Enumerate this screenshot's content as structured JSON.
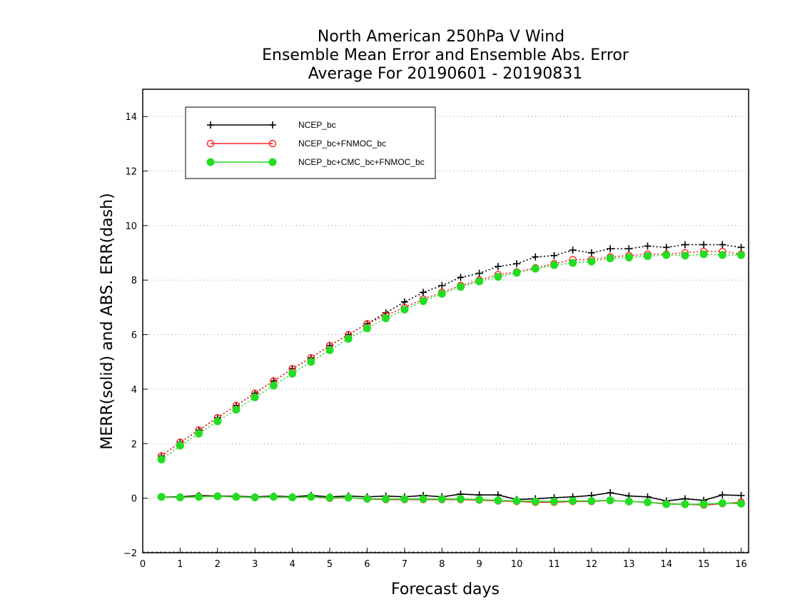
{
  "chart_data": {
    "type": "line",
    "title_lines": [
      "North American 250hPa V Wind",
      "Ensemble Mean Error and Ensemble Abs. Error",
      "Average For 20190601 - 20190831"
    ],
    "xlabel": "Forecast days",
    "ylabel": "MERR(solid) and ABS. ERR(dash)",
    "xlim": [
      0,
      16.2
    ],
    "ylim": [
      -2,
      15
    ],
    "xticks": [
      "0",
      "1",
      "2",
      "3",
      "4",
      "5",
      "6",
      "7",
      "8",
      "9",
      "10",
      "11",
      "12",
      "13",
      "14",
      "15",
      "16"
    ],
    "yticks": [
      "−2",
      "0",
      "2",
      "4",
      "6",
      "8",
      "10",
      "12",
      "14"
    ],
    "grid": "horizontal dotted",
    "legend_position": "top-left",
    "x": [
      0.5,
      1,
      1.5,
      2,
      2.5,
      3,
      3.5,
      4,
      4.5,
      5,
      5.5,
      6,
      6.5,
      7,
      7.5,
      8,
      8.5,
      9,
      9.5,
      10,
      10.5,
      11,
      11.5,
      12,
      12.5,
      13,
      13.5,
      14,
      14.5,
      15,
      15.5,
      16
    ],
    "series": [
      {
        "name": "NCEP_bc",
        "color": "#000000",
        "marker": "plus",
        "merr": [
          0.05,
          0.05,
          0.1,
          0.08,
          0.07,
          0.05,
          0.08,
          0.05,
          0.1,
          0.05,
          0.08,
          0.05,
          0.08,
          0.05,
          0.1,
          0.05,
          0.15,
          0.12,
          0.12,
          -0.05,
          -0.02,
          0.02,
          0.05,
          0.1,
          0.2,
          0.08,
          0.05,
          -0.1,
          -0.02,
          -0.08,
          0.12,
          0.1
        ],
        "abs_err": [
          1.55,
          2.05,
          2.5,
          2.95,
          3.4,
          3.85,
          4.3,
          4.75,
          5.15,
          5.6,
          6.0,
          6.4,
          6.8,
          7.2,
          7.55,
          7.8,
          8.1,
          8.25,
          8.5,
          8.6,
          8.85,
          8.9,
          9.1,
          9.0,
          9.15,
          9.15,
          9.25,
          9.2,
          9.3,
          9.3,
          9.3,
          9.2
        ]
      },
      {
        "name": "NCEP_bc+FNMOC_bc",
        "color": "#ff2020",
        "marker": "open-circle",
        "merr": [
          0.05,
          0.03,
          0.07,
          0.07,
          0.05,
          0.03,
          0.05,
          0.03,
          0.05,
          0.0,
          0.02,
          -0.03,
          -0.05,
          -0.05,
          -0.05,
          -0.05,
          -0.05,
          -0.07,
          -0.1,
          -0.12,
          -0.15,
          -0.15,
          -0.12,
          -0.12,
          -0.08,
          -0.12,
          -0.15,
          -0.2,
          -0.22,
          -0.25,
          -0.2,
          -0.15
        ],
        "abs_err": [
          1.55,
          2.05,
          2.5,
          2.95,
          3.4,
          3.85,
          4.3,
          4.75,
          5.15,
          5.6,
          6.0,
          6.4,
          6.7,
          7.0,
          7.3,
          7.55,
          7.8,
          8.0,
          8.2,
          8.3,
          8.45,
          8.6,
          8.75,
          8.75,
          8.85,
          8.9,
          8.95,
          8.95,
          9.0,
          9.05,
          9.05,
          8.95
        ]
      },
      {
        "name": "NCEP_bc+CMC_bc+FNMOC_bc",
        "color": "#22dd22",
        "marker": "filled-circle",
        "merr": [
          0.05,
          0.03,
          0.05,
          0.07,
          0.05,
          0.03,
          0.05,
          0.03,
          0.05,
          0.02,
          0.02,
          -0.02,
          -0.03,
          -0.03,
          -0.03,
          -0.03,
          -0.03,
          -0.05,
          -0.08,
          -0.1,
          -0.12,
          -0.12,
          -0.1,
          -0.1,
          -0.08,
          -0.12,
          -0.15,
          -0.22,
          -0.22,
          -0.22,
          -0.18,
          -0.2
        ],
        "abs_err": [
          1.42,
          1.93,
          2.37,
          2.82,
          3.25,
          3.7,
          4.13,
          4.57,
          5.0,
          5.43,
          5.85,
          6.23,
          6.6,
          6.92,
          7.23,
          7.5,
          7.75,
          7.95,
          8.12,
          8.27,
          8.42,
          8.55,
          8.63,
          8.68,
          8.8,
          8.83,
          8.88,
          8.92,
          8.9,
          8.95,
          8.92,
          8.92
        ]
      }
    ]
  }
}
